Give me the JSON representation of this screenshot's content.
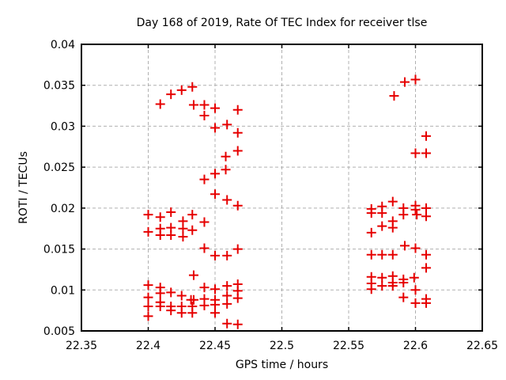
{
  "chart_data": {
    "type": "scatter",
    "title": "Day 168 of 2019, Rate Of TEC Index for receiver tlse",
    "xlabel": "GPS time / hours",
    "ylabel": "ROTI / TECUs",
    "xlim": [
      22.35,
      22.65
    ],
    "ylim": [
      0.005,
      0.04
    ],
    "grid": true,
    "legend_position": "none",
    "marker": "plus",
    "marker_color": "#e60000",
    "grid_color": "#b0b0b0",
    "border_color": "#000000",
    "background_color": "#ffffff",
    "xticks": [
      {
        "v": 22.35,
        "label": "22.35"
      },
      {
        "v": 22.4,
        "label": "22.4"
      },
      {
        "v": 22.45,
        "label": "22.45"
      },
      {
        "v": 22.5,
        "label": "22.5"
      },
      {
        "v": 22.55,
        "label": "22.55"
      },
      {
        "v": 22.6,
        "label": "22.6"
      },
      {
        "v": 22.65,
        "label": "22.65"
      }
    ],
    "yticks": [
      {
        "v": 0.005,
        "label": "0.005"
      },
      {
        "v": 0.01,
        "label": "0.01"
      },
      {
        "v": 0.015,
        "label": "0.015"
      },
      {
        "v": 0.02,
        "label": "0.02"
      },
      {
        "v": 0.025,
        "label": "0.025"
      },
      {
        "v": 0.03,
        "label": "0.03"
      },
      {
        "v": 0.035,
        "label": "0.035"
      },
      {
        "v": 0.04,
        "label": "0.04"
      }
    ],
    "series": [
      {
        "name": "ROTI",
        "points": [
          [
            22.409,
            0.0327
          ],
          [
            22.417,
            0.0339
          ],
          [
            22.425,
            0.0344
          ],
          [
            22.433,
            0.0348
          ],
          [
            22.434,
            0.0326
          ],
          [
            22.442,
            0.0326
          ],
          [
            22.442,
            0.0313
          ],
          [
            22.45,
            0.0322
          ],
          [
            22.45,
            0.0298
          ],
          [
            22.459,
            0.0302
          ],
          [
            22.467,
            0.032
          ],
          [
            22.467,
            0.0292
          ],
          [
            22.467,
            0.027
          ],
          [
            22.458,
            0.0263
          ],
          [
            22.458,
            0.0247
          ],
          [
            22.45,
            0.0242
          ],
          [
            22.442,
            0.0235
          ],
          [
            22.45,
            0.0217
          ],
          [
            22.459,
            0.021
          ],
          [
            22.467,
            0.0203
          ],
          [
            22.4,
            0.0192
          ],
          [
            22.409,
            0.0189
          ],
          [
            22.417,
            0.0195
          ],
          [
            22.426,
            0.0184
          ],
          [
            22.433,
            0.0192
          ],
          [
            22.442,
            0.0183
          ],
          [
            22.4,
            0.0171
          ],
          [
            22.409,
            0.0175
          ],
          [
            22.409,
            0.0167
          ],
          [
            22.417,
            0.0176
          ],
          [
            22.417,
            0.0167
          ],
          [
            22.426,
            0.0175
          ],
          [
            22.426,
            0.0165
          ],
          [
            22.433,
            0.0173
          ],
          [
            22.442,
            0.0151
          ],
          [
            22.45,
            0.0142
          ],
          [
            22.459,
            0.0142
          ],
          [
            22.467,
            0.015
          ],
          [
            22.434,
            0.0118
          ],
          [
            22.4,
            0.0106
          ],
          [
            22.4,
            0.0091
          ],
          [
            22.4,
            0.008
          ],
          [
            22.4,
            0.0068
          ],
          [
            22.409,
            0.0103
          ],
          [
            22.409,
            0.0096
          ],
          [
            22.409,
            0.0085
          ],
          [
            22.409,
            0.008
          ],
          [
            22.417,
            0.0097
          ],
          [
            22.417,
            0.008
          ],
          [
            22.417,
            0.0075
          ],
          [
            22.425,
            0.0093
          ],
          [
            22.425,
            0.008
          ],
          [
            22.425,
            0.0072
          ],
          [
            22.432,
            0.0088
          ],
          [
            22.434,
            0.0088
          ],
          [
            22.433,
            0.008
          ],
          [
            22.433,
            0.0072
          ],
          [
            22.442,
            0.0103
          ],
          [
            22.442,
            0.0089
          ],
          [
            22.442,
            0.0081
          ],
          [
            22.45,
            0.0101
          ],
          [
            22.45,
            0.0088
          ],
          [
            22.45,
            0.0082
          ],
          [
            22.45,
            0.0072
          ],
          [
            22.459,
            0.0105
          ],
          [
            22.459,
            0.0093
          ],
          [
            22.459,
            0.0083
          ],
          [
            22.459,
            0.0059
          ],
          [
            22.467,
            0.0107
          ],
          [
            22.467,
            0.0099
          ],
          [
            22.467,
            0.009
          ],
          [
            22.467,
            0.0058
          ],
          [
            22.584,
            0.0337
          ],
          [
            22.592,
            0.0354
          ],
          [
            22.6,
            0.0357
          ],
          [
            22.608,
            0.0288
          ],
          [
            22.6,
            0.0267
          ],
          [
            22.608,
            0.0267
          ],
          [
            22.567,
            0.0199
          ],
          [
            22.567,
            0.0194
          ],
          [
            22.575,
            0.0202
          ],
          [
            22.575,
            0.0194
          ],
          [
            22.583,
            0.0208
          ],
          [
            22.591,
            0.02
          ],
          [
            22.591,
            0.0192
          ],
          [
            22.6,
            0.0203
          ],
          [
            22.6,
            0.0198
          ],
          [
            22.601,
            0.0192
          ],
          [
            22.608,
            0.02
          ],
          [
            22.608,
            0.019
          ],
          [
            22.583,
            0.0184
          ],
          [
            22.575,
            0.0178
          ],
          [
            22.583,
            0.0176
          ],
          [
            22.567,
            0.017
          ],
          [
            22.592,
            0.0154
          ],
          [
            22.6,
            0.0151
          ],
          [
            22.567,
            0.0143
          ],
          [
            22.575,
            0.0143
          ],
          [
            22.583,
            0.0143
          ],
          [
            22.608,
            0.0143
          ],
          [
            22.608,
            0.0127
          ],
          [
            22.567,
            0.0116
          ],
          [
            22.567,
            0.0108
          ],
          [
            22.567,
            0.0101
          ],
          [
            22.575,
            0.0115
          ],
          [
            22.575,
            0.0105
          ],
          [
            22.583,
            0.0117
          ],
          [
            22.583,
            0.0109
          ],
          [
            22.583,
            0.0105
          ],
          [
            22.591,
            0.0113
          ],
          [
            22.591,
            0.0109
          ],
          [
            22.599,
            0.0115
          ],
          [
            22.6,
            0.01
          ],
          [
            22.591,
            0.0091
          ],
          [
            22.6,
            0.0084
          ],
          [
            22.608,
            0.0089
          ],
          [
            22.608,
            0.0084
          ]
        ]
      }
    ]
  }
}
